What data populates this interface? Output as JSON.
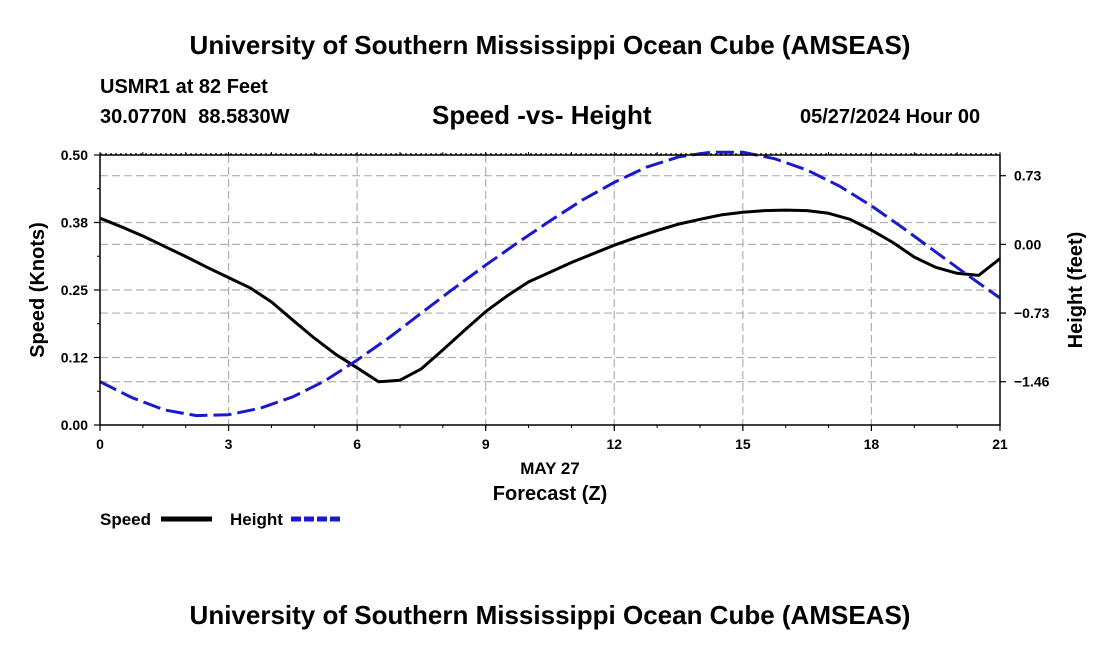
{
  "header": {
    "title": "University of Southern Mississippi Ocean Cube (AMSEAS)",
    "station": "USMR1 at 82 Feet",
    "coordinates": "30.0770N  88.5830W",
    "subtitle": "Speed -vs- Height",
    "datetime": "05/27/2024 Hour 00"
  },
  "footer": {
    "title": "University of Southern Mississippi Ocean Cube (AMSEAS)"
  },
  "chart_data": {
    "type": "line",
    "title": "Speed -vs- Height",
    "xlabel_date": "MAY 27",
    "xlabel": "Forecast (Z)",
    "ylabel": "Speed (Knots)",
    "y2label": "Height (feet)",
    "xlim": [
      0,
      21
    ],
    "ylim": [
      0,
      0.5
    ],
    "y2lim": [
      -1.92,
      0.95
    ],
    "grid": true,
    "legend_position": "bottom-left",
    "x_ticks": [
      0,
      3,
      6,
      9,
      12,
      15,
      18,
      21
    ],
    "x_tick_labels": [
      "0",
      "3",
      "6",
      "9",
      "12",
      "15",
      "18",
      "21"
    ],
    "y_ticks": [
      0,
      0.125,
      0.25,
      0.375,
      0.5
    ],
    "y_tick_labels": [
      "0.00",
      "0.12",
      "0.25",
      "0.38",
      "0.50"
    ],
    "y2_ticks": [
      0.73,
      0,
      -0.73,
      -1.46
    ],
    "y2_tick_labels": [
      "0.73",
      "0.00",
      "−0.73",
      "−1.46"
    ],
    "series": [
      {
        "name": "Speed",
        "axis": "left",
        "color": "#000000",
        "dash": "solid",
        "x": [
          0,
          0.5,
          1,
          1.5,
          2,
          2.5,
          3,
          3.5,
          4,
          4.5,
          5,
          5.5,
          6,
          6.5,
          7,
          7.5,
          8,
          8.5,
          9,
          9.5,
          10,
          10.5,
          11,
          11.5,
          12,
          12.5,
          13,
          13.5,
          14,
          14.5,
          15,
          15.5,
          16,
          16.5,
          17,
          17.5,
          18,
          18.5,
          19,
          19.5,
          20,
          20.5,
          21
        ],
        "values": [
          0.383,
          0.367,
          0.35,
          0.331,
          0.312,
          0.292,
          0.273,
          0.254,
          0.228,
          0.194,
          0.161,
          0.131,
          0.106,
          0.08,
          0.083,
          0.104,
          0.139,
          0.175,
          0.21,
          0.239,
          0.265,
          0.283,
          0.301,
          0.317,
          0.333,
          0.347,
          0.36,
          0.372,
          0.381,
          0.389,
          0.394,
          0.397,
          0.398,
          0.397,
          0.392,
          0.381,
          0.361,
          0.338,
          0.311,
          0.292,
          0.281,
          0.277,
          0.308
        ]
      },
      {
        "name": "Height",
        "axis": "right",
        "color": "#1a1acc",
        "dash": "dashed",
        "x": [
          0,
          0.75,
          1.5,
          2.25,
          3,
          3.75,
          4.5,
          5.25,
          6,
          6.75,
          7.5,
          8.25,
          9,
          9.75,
          10.5,
          11.25,
          12,
          12.75,
          13.5,
          14.25,
          15,
          15.75,
          16.5,
          17.25,
          18,
          18.75,
          19.5,
          20.25,
          21
        ],
        "values": [
          -1.46,
          -1.63,
          -1.76,
          -1.82,
          -1.81,
          -1.74,
          -1.62,
          -1.45,
          -1.23,
          -0.99,
          -0.73,
          -0.47,
          -0.22,
          0.02,
          0.25,
          0.47,
          0.66,
          0.82,
          0.93,
          0.98,
          0.98,
          0.91,
          0.79,
          0.62,
          0.41,
          0.17,
          -0.08,
          -0.33,
          -0.57
        ]
      }
    ]
  }
}
